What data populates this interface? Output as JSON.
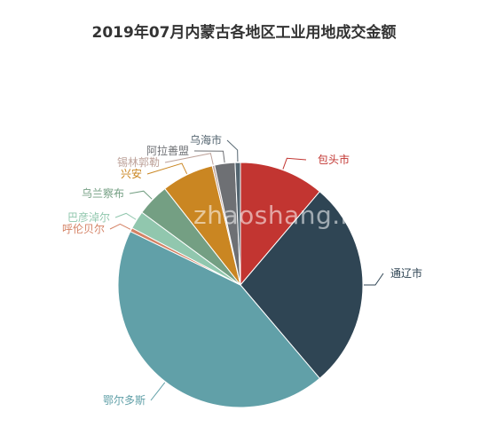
{
  "chart_data": {
    "type": "pie",
    "title": "2019年07月内蒙古各地区工业用地成交金额",
    "slices": [
      {
        "label": "包头市",
        "value": 11.2,
        "color": "#c23531"
      },
      {
        "label": "通辽市",
        "value": 27.6,
        "color": "#2f4554"
      },
      {
        "label": "鄂尔多斯",
        "value": 43.4,
        "color": "#61a0a8"
      },
      {
        "label": "呼伦贝尔",
        "value": 0.5,
        "color": "#d48265"
      },
      {
        "label": "巴彦淖尔",
        "value": 2.4,
        "color": "#91c7ae"
      },
      {
        "label": "乌兰察布",
        "value": 4.3,
        "color": "#749f83"
      },
      {
        "label": "兴安",
        "value": 6.9,
        "color": "#ca8622"
      },
      {
        "label": "锡林郭勒",
        "value": 0.3,
        "color": "#bda29a"
      },
      {
        "label": "阿拉善盟",
        "value": 2.7,
        "color": "#6e7074"
      },
      {
        "label": "乌海市",
        "value": 0.7,
        "color": "#546570"
      }
    ]
  },
  "watermark": "zhaoshang.net"
}
